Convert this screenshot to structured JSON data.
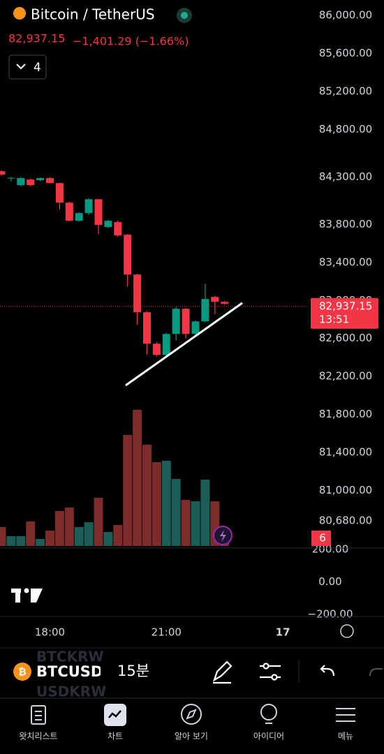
{
  "header": {
    "title": "Bitcoin / TetherUS",
    "price": "82,937.15",
    "change": "−1,401.29 (−1.66%)",
    "indicators": "4"
  },
  "chart_data": {
    "type": "candlestick",
    "colors": {
      "up": "#089981",
      "down": "#f23645",
      "volume_up": "#1b5e58",
      "volume_down": "#7d2b2b"
    },
    "open": [
      84360,
      84287,
      84213,
      84272,
      84265,
      84287,
      84235,
      84029,
      83838,
      83919,
      84065,
      83772,
      83824,
      83691,
      83272,
      82875,
      82544,
      82426,
      82647,
      82912,
      82647,
      82779,
      83037,
      82985
    ],
    "high": [
      84370,
      84300,
      84300,
      84285,
      84295,
      84295,
      84240,
      84040,
      83930,
      84075,
      84070,
      83850,
      83840,
      83700,
      83280,
      82890,
      82560,
      82660,
      82930,
      82920,
      82790,
      83176,
      83050,
      82995
    ],
    "low": [
      84310,
      84250,
      84200,
      84200,
      84255,
      84230,
      83956,
      83830,
      83830,
      83900,
      83699,
      83760,
      83670,
      83147,
      82743,
      82426,
      82410,
      82410,
      82580,
      82600,
      82630,
      82770,
      82853,
      82955
    ],
    "close": [
      84324,
      84290,
      84287,
      84213,
      84287,
      84235,
      84029,
      83838,
      83919,
      84065,
      83794,
      83838,
      83684,
      83272,
      82875,
      82544,
      82426,
      82647,
      82912,
      82647,
      82779,
      83015,
      82985,
      82963
    ],
    "volume": [
      27,
      14,
      14,
      35,
      10,
      22,
      50,
      55,
      27,
      34,
      69,
      20,
      30,
      159,
      195,
      145,
      120,
      122,
      96,
      66,
      64,
      95,
      64,
      20
    ],
    "ylim": [
      86000,
      80680
    ],
    "yticks": [
      {
        "value": 86000,
        "label": "86,000.00"
      },
      {
        "value": 85600,
        "label": "85,600.00"
      },
      {
        "value": 85200,
        "label": "85,200.00"
      },
      {
        "value": 84800,
        "label": "84,800.00"
      },
      {
        "value": 84300,
        "label": "84,300.00"
      },
      {
        "value": 83800,
        "label": "83,800.00"
      },
      {
        "value": 83400,
        "label": "83,400.00"
      },
      {
        "value": 83000,
        "label": "83,000.00"
      },
      {
        "value": 82600,
        "label": "82,600.00"
      },
      {
        "value": 82200,
        "label": "82,200.00"
      },
      {
        "value": 81800,
        "label": "81,800.00"
      },
      {
        "value": 81400,
        "label": "81,400.00"
      },
      {
        "value": 81000,
        "label": "81,000.00"
      },
      {
        "value": 80680,
        "label": "80,680.00"
      }
    ],
    "last_price": {
      "value": 82937.15,
      "label": "82,937.15"
    },
    "countdown": "13:51",
    "volume_label": "6",
    "indicator_ylim": [
      200,
      -200
    ],
    "indicator_yticks": [
      {
        "value": 200,
        "label": "200.00"
      },
      {
        "value": 0,
        "label": "0.00"
      },
      {
        "value": -200,
        "label": "−200.00"
      }
    ],
    "time_labels": [
      "18:00",
      "21:00",
      "17"
    ]
  },
  "toolbar": {
    "symbol": "BTCUSD",
    "interval": "15분",
    "ghost_symbols": [
      "BTCKRW",
      "USDKRW"
    ]
  },
  "nav": [
    "왓치리스트",
    "차트",
    "알아 보기",
    "아이디어",
    "메뉴"
  ]
}
